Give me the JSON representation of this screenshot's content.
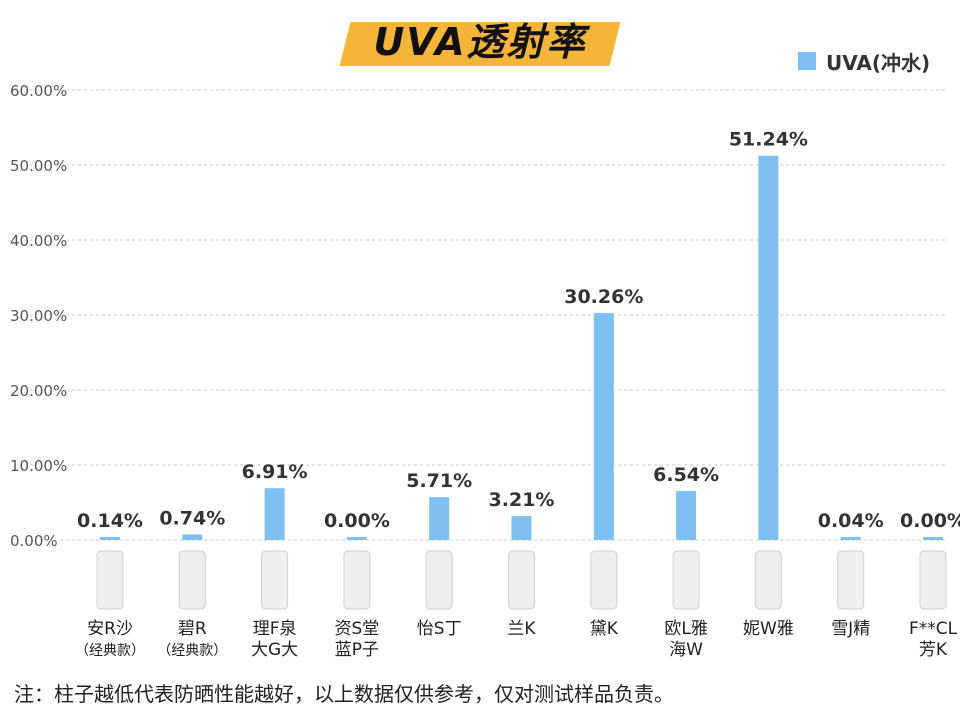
{
  "chart_data": {
    "type": "bar",
    "title": "UVA透射率",
    "series": [
      {
        "name": "UVA(冲水)",
        "values": [
          0.14,
          0.74,
          6.91,
          0.0,
          5.71,
          3.21,
          30.26,
          6.54,
          51.24,
          0.04,
          0.0
        ]
      }
    ],
    "categories": [
      [
        "安R沙",
        "（经典款）"
      ],
      [
        "碧R",
        "（经典款）"
      ],
      [
        "理F泉",
        "大G大"
      ],
      [
        "资S堂",
        "蓝P子"
      ],
      [
        "怡S丁"
      ],
      [
        "兰K"
      ],
      [
        "黛K"
      ],
      [
        "欧L雅",
        "海W"
      ],
      [
        "妮W雅"
      ],
      [
        "雪J精"
      ],
      [
        "F**CL",
        "芳K"
      ]
    ],
    "data_labels": [
      "0.14%",
      "0.74%",
      "6.91%",
      "0.00%",
      "5.71%",
      "3.21%",
      "30.26%",
      "6.54%",
      "51.24%",
      "0.04%",
      "0.00%"
    ],
    "y_ticks": [
      "0.00%",
      "10.00%",
      "20.00%",
      "30.00%",
      "40.00%",
      "50.00%",
      "60.00%"
    ],
    "ylim": [
      0,
      60
    ],
    "grid": true,
    "legend_position": "top-right",
    "footnote": "注：柱子越低代表防晒性能越好，以上数据仅供参考，仅对测试样品负责。",
    "colors": {
      "bar": "#7ec0f2",
      "grid": "#c8c8c8",
      "title_band": "#f5b53b",
      "tick_text": "#555555",
      "label_text": "#333333"
    }
  }
}
